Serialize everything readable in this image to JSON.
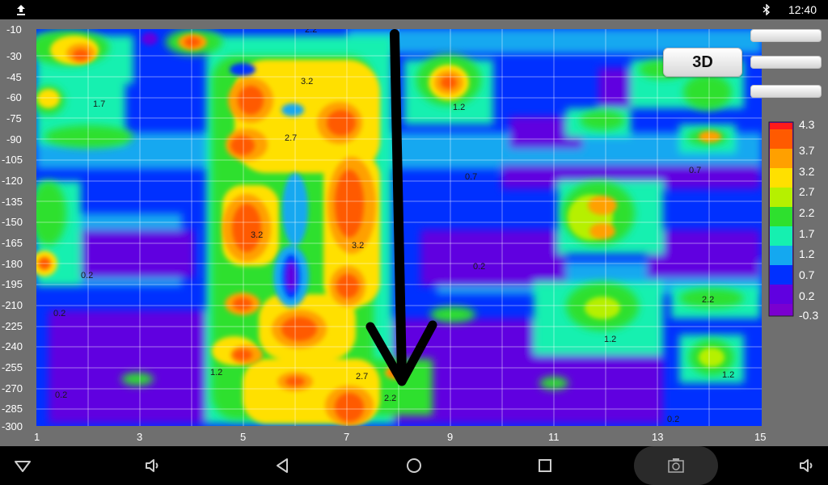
{
  "status_bar": {
    "time": "12:40"
  },
  "toolbar": {
    "view_3d_label": "3D"
  },
  "plot": {
    "y_ticks": [
      "-10",
      "-30",
      "-45",
      "-60",
      "-75",
      "-90",
      "-105",
      "-120",
      "-135",
      "-150",
      "-165",
      "-180",
      "-195",
      "-210",
      "-225",
      "-240",
      "-255",
      "-270",
      "-285",
      "-300"
    ],
    "x_ticks": [
      "1",
      "3",
      "5",
      "7",
      "9",
      "11",
      "13",
      "15"
    ],
    "contour_labels": [
      "2.2",
      "1.7",
      "1.2",
      "3.2",
      "2.7",
      "0.7",
      "0.2"
    ]
  },
  "legend": {
    "labels": [
      "4.3",
      "3.7",
      "3.2",
      "2.7",
      "2.2",
      "1.7",
      "1.2",
      "0.7",
      "0.2",
      "-0.3"
    ],
    "colors": [
      "#ff1a1a",
      "#ff5a00",
      "#ffa000",
      "#ffe000",
      "#b6f000",
      "#2ee02e",
      "#15f0b0",
      "#14a8f0",
      "#0030ff",
      "#6000e0",
      "#7a00d0"
    ]
  },
  "colors": {
    "background": "#6f6f6f",
    "status_bar": "#000000",
    "nav_bar": "#000000"
  }
}
